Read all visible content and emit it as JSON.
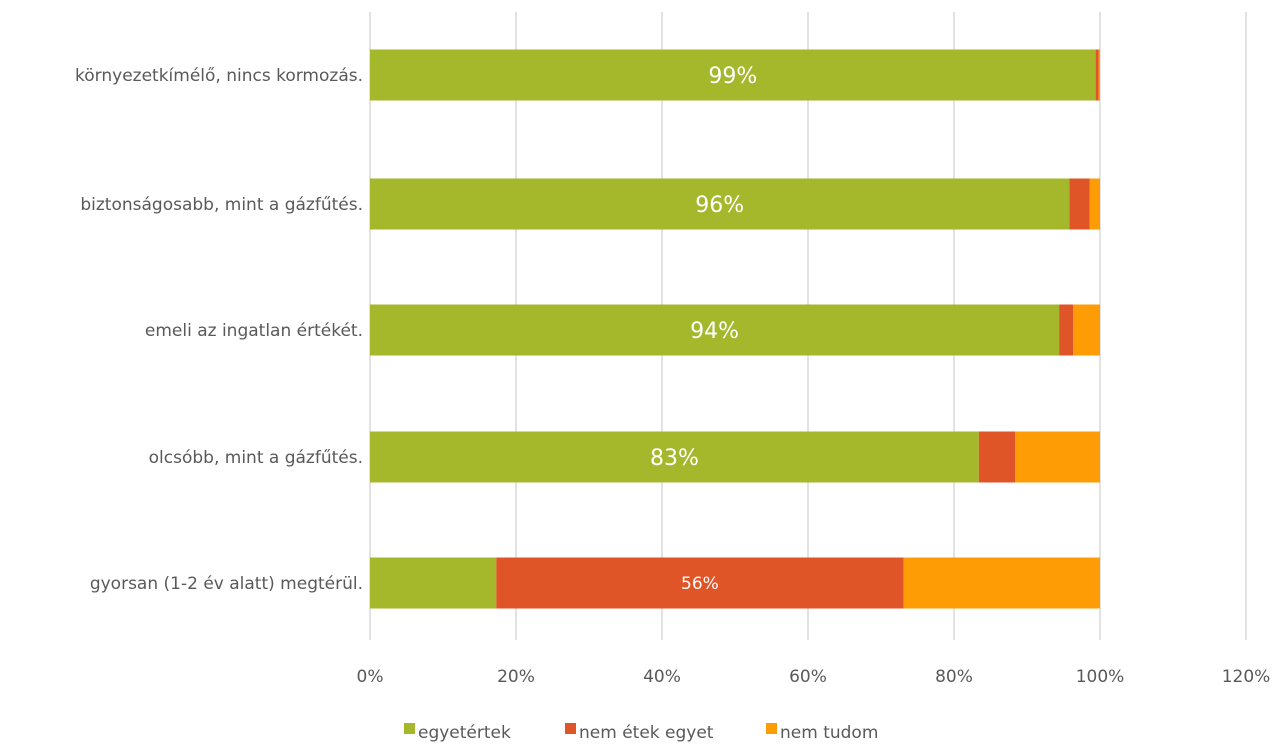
{
  "chart_data": {
    "type": "bar",
    "orientation": "horizontal",
    "stacked": true,
    "categories": [
      "környezetkímélő, nincs kormozás.",
      "biztonságosabb, mint a gázfűtés.",
      "emeli az ingatlan értékét.",
      "olcsóbb, mint a gázfűtés.",
      "gyorsan (1-2 év alatt) megtérül."
    ],
    "series": [
      {
        "name": "egyetértek",
        "color": "#a5b72b",
        "values": [
          99.4,
          95.8,
          94.4,
          83.4,
          17.3
        ]
      },
      {
        "name": "nem étek egyet",
        "color": "#e05527",
        "values": [
          0.4,
          2.8,
          1.9,
          5.0,
          55.8
        ]
      },
      {
        "name": "nem tudom",
        "color": "#fd9c04",
        "values": [
          0.2,
          1.4,
          3.7,
          11.6,
          26.9
        ]
      }
    ],
    "data_labels": [
      {
        "category_index": 0,
        "series_index": 0,
        "text": "99%"
      },
      {
        "category_index": 1,
        "series_index": 0,
        "text": "96%"
      },
      {
        "category_index": 2,
        "series_index": 0,
        "text": "94%"
      },
      {
        "category_index": 3,
        "series_index": 0,
        "text": "83%"
      },
      {
        "category_index": 4,
        "series_index": 1,
        "text": "56%"
      }
    ],
    "xlim": [
      0,
      120
    ],
    "x_ticks": [
      0,
      20,
      40,
      60,
      80,
      100,
      120
    ],
    "x_tick_labels": [
      "0%",
      "20%",
      "40%",
      "60%",
      "80%",
      "100%",
      "120%"
    ],
    "grid": true,
    "legend_position": "bottom",
    "title": "",
    "xlabel": "",
    "ylabel": ""
  }
}
